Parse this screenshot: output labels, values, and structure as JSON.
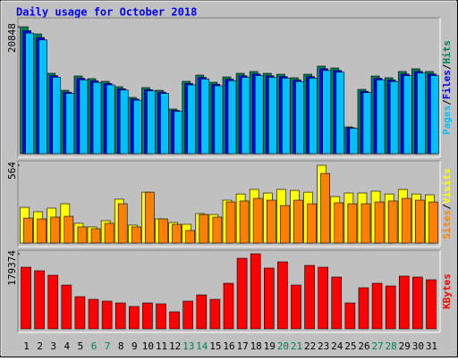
{
  "title": "Daily usage for October 2018",
  "legend_separator": "/",
  "chart_data": [
    {
      "type": "bar",
      "ylim": [
        0,
        20848
      ],
      "yticks": [
        20848
      ],
      "series": [
        {
          "name": "Hits",
          "color": "#00805c",
          "values": [
            20848,
            19670,
            13210,
            10420,
            12770,
            12330,
            11890,
            11010,
            9250,
            10860,
            10420,
            7340,
            11890,
            12920,
            11740,
            12620,
            13210,
            13510,
            13210,
            13060,
            12480,
            13060,
            14390,
            14090,
            4400,
            10570,
            12770,
            12480,
            13510,
            13950,
            13510
          ]
        },
        {
          "name": "Files",
          "color": "#0000ff",
          "values": [
            20220,
            19080,
            12810,
            10110,
            12390,
            11960,
            11530,
            10680,
            8970,
            10530,
            10110,
            7120,
            11530,
            12530,
            11390,
            12240,
            12810,
            13100,
            12810,
            12670,
            12110,
            12670,
            13960,
            13670,
            4270,
            10250,
            12390,
            12110,
            13100,
            13530,
            13100
          ]
        },
        {
          "name": "Pages",
          "color": "#00c0ff",
          "values": [
            19810,
            18690,
            12550,
            9900,
            12130,
            11710,
            11300,
            10460,
            8790,
            10320,
            9900,
            6970,
            11300,
            12270,
            11150,
            11990,
            12550,
            12830,
            12550,
            12410,
            11860,
            12410,
            13670,
            13390,
            4180,
            10040,
            12130,
            11860,
            12830,
            13250,
            12830
          ]
        }
      ]
    },
    {
      "type": "bar",
      "ylim": [
        0,
        564
      ],
      "yticks": [
        564
      ],
      "series": [
        {
          "name": "Visits",
          "color": "#ffff00",
          "values": [
            259,
            227,
            253,
            285,
            143,
            117,
            162,
            318,
            130,
            369,
            175,
            149,
            136,
            214,
            207,
            311,
            356,
            389,
            363,
            389,
            382,
            369,
            564,
            337,
            363,
            363,
            376,
            356,
            389,
            356,
            350
          ]
        },
        {
          "name": "Sites",
          "color": "#ff8000",
          "values": [
            181,
            175,
            188,
            194,
            117,
            104,
            143,
            285,
            117,
            369,
            175,
            136,
            91,
            207,
            188,
            298,
            305,
            324,
            311,
            272,
            311,
            285,
            505,
            292,
            285,
            285,
            298,
            305,
            324,
            311,
            298
          ]
        }
      ]
    },
    {
      "type": "bar",
      "ylim": [
        0,
        179374
      ],
      "yticks": [
        179374
      ],
      "categories": [
        "1",
        "2",
        "3",
        "4",
        "5",
        "6",
        "7",
        "8",
        "9",
        "10",
        "11",
        "12",
        "13",
        "14",
        "15",
        "16",
        "17",
        "18",
        "19",
        "20",
        "21",
        "22",
        "23",
        "24",
        "25",
        "26",
        "27",
        "28",
        "29",
        "30",
        "31"
      ],
      "category_colors": [
        "#000",
        "#000",
        "#000",
        "#000",
        "#000",
        "#00805c",
        "#00805c",
        "#000",
        "#000",
        "#000",
        "#000",
        "#000",
        "#00805c",
        "#00805c",
        "#000",
        "#000",
        "#000",
        "#000",
        "#000",
        "#00805c",
        "#00805c",
        "#000",
        "#000",
        "#000",
        "#000",
        "#000",
        "#00805c",
        "#00805c",
        "#000",
        "#000",
        "#000"
      ],
      "series": [
        {
          "name": "KBytes",
          "color": "#ff0000",
          "values": [
            147300,
            138800,
            128100,
            104600,
            76900,
            70500,
            66200,
            61900,
            53400,
            61900,
            59800,
            40600,
            66200,
            81100,
            70500,
            108900,
            168700,
            179374,
            145200,
            160100,
            104600,
            151600,
            147300,
            123800,
            61900,
            98200,
            108900,
            102500,
            126000,
            123800,
            117400
          ]
        }
      ]
    }
  ]
}
